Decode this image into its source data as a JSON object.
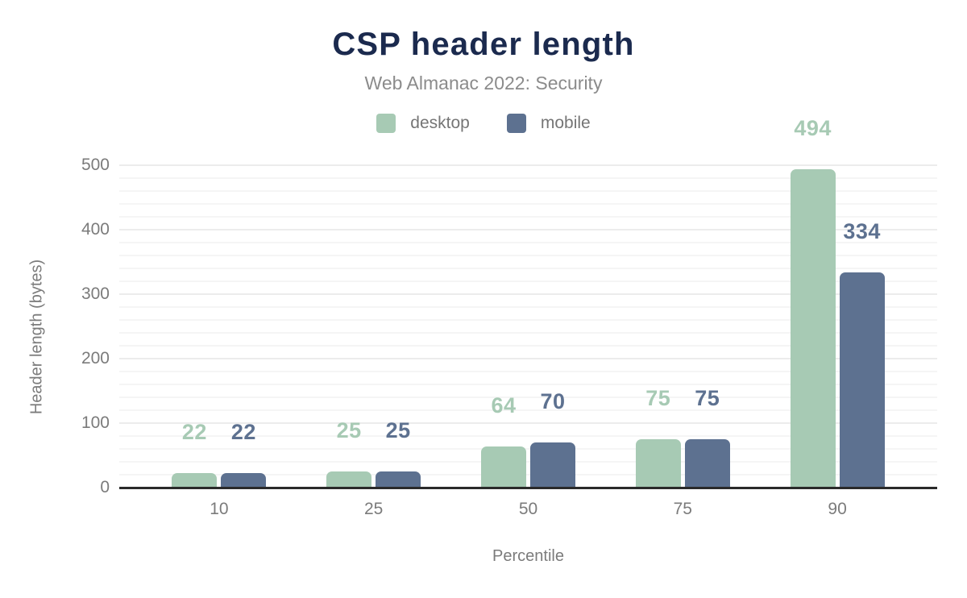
{
  "chart_data": {
    "type": "bar",
    "title": "CSP header length",
    "subtitle": "Web Almanac 2022: Security",
    "categories": [
      "10",
      "25",
      "50",
      "75",
      "90"
    ],
    "series": [
      {
        "name": "desktop",
        "color": "#a7cab4",
        "values": [
          22,
          25,
          64,
          75,
          494
        ]
      },
      {
        "name": "mobile",
        "color": "#5d7190",
        "values": [
          22,
          25,
          70,
          75,
          334
        ]
      }
    ],
    "xlabel": "Percentile",
    "ylabel": "Header length (bytes)",
    "ylim": [
      0,
      500
    ],
    "y_ticks": [
      0,
      100,
      200,
      300,
      400,
      500
    ],
    "minor_grid_step": 20,
    "major_grid_step": 100,
    "grid": true,
    "legend_position": "top",
    "data_labels_visible": true
  },
  "colors": {
    "title": "#1b2a4e",
    "subtitle": "#8b8b8b",
    "axis_text": "#7b7b7b",
    "axis_line": "#2a2a2a",
    "major_gridline": "#ececec",
    "minor_gridline": "#f5f5f5",
    "background": "#ffffff"
  }
}
